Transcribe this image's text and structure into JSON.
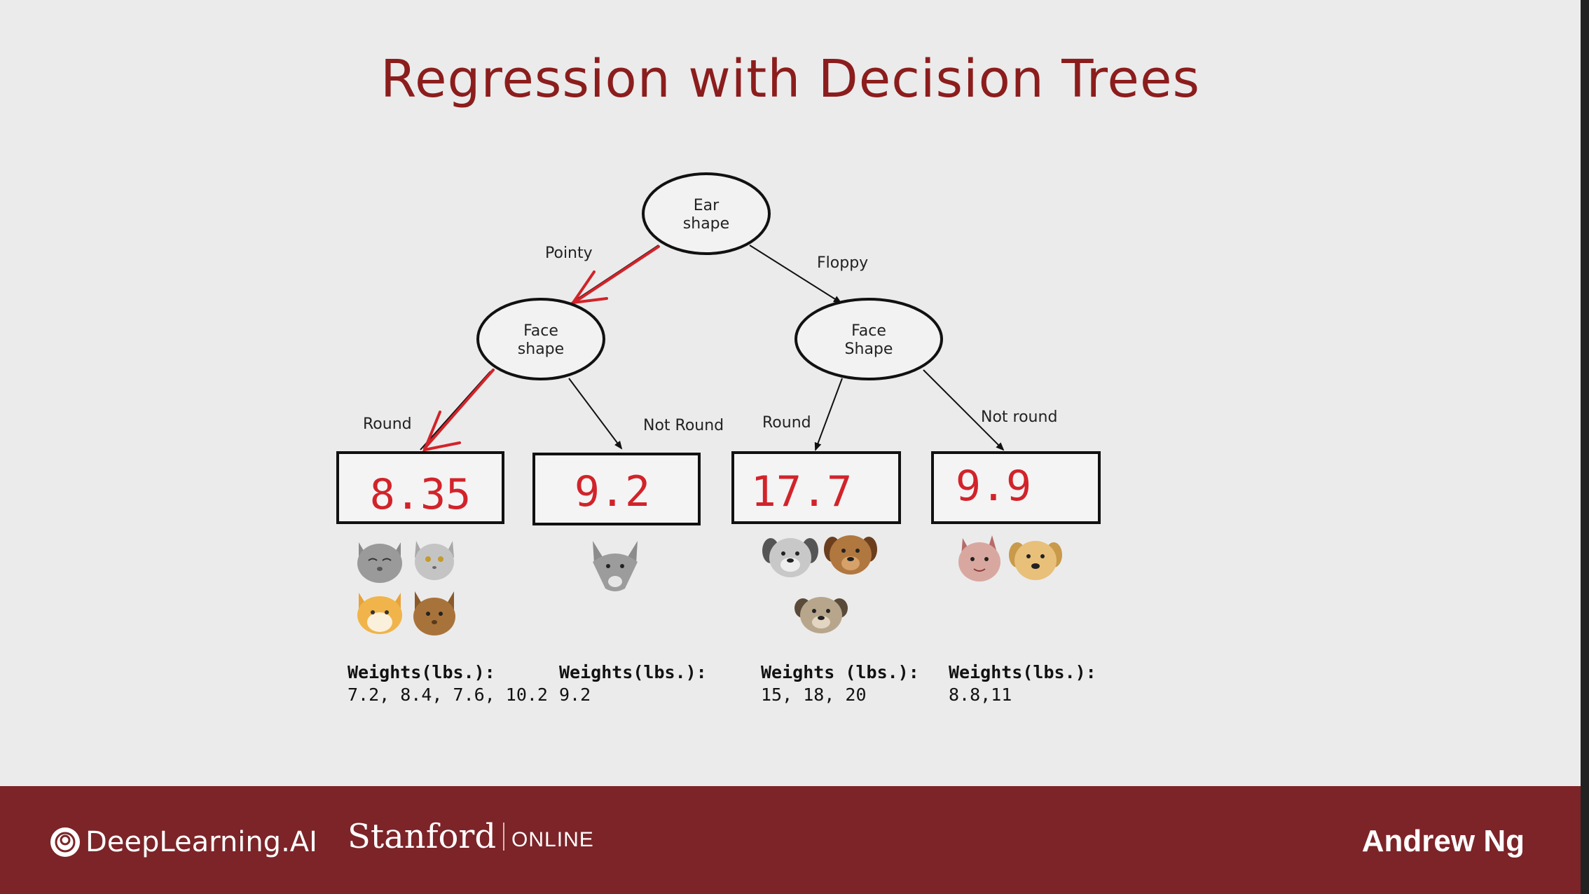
{
  "slide": {
    "title": "Regression with Decision Trees"
  },
  "tree": {
    "root": {
      "label_line1": "Ear",
      "label_line2": "shape"
    },
    "left_node": {
      "label_line1": "Face",
      "label_line2": "shape"
    },
    "right_node": {
      "label_line1": "Face",
      "label_line2": "Shape"
    },
    "edges": {
      "root_left": "Pointy",
      "root_right": "Floppy",
      "left_left": "Round",
      "left_right": "Not Round",
      "right_left": "Round",
      "right_right": "Not round"
    },
    "leaves": [
      {
        "value": "8.35",
        "weights_label": "Weights(lbs.):",
        "weights": "7.2, 8.4, 7.6, 10.2"
      },
      {
        "value": "9.2",
        "weights_label": "Weights(lbs.):",
        "weights": "9.2"
      },
      {
        "value": "17.7",
        "weights_label": "Weights (lbs.):",
        "weights": "15,  18, 20"
      },
      {
        "value": "9.9",
        "weights_label": "Weights(lbs.):",
        "weights": "8.8,11"
      }
    ]
  },
  "footer": {
    "deeplearning": "DeepLearning.AI",
    "stanford": "Stanford",
    "online": "ONLINE",
    "instructor": "Andrew Ng"
  },
  "colors": {
    "title": "#8c1d1d",
    "footer_bg": "#7c2428",
    "highlight": "#d2232a"
  }
}
